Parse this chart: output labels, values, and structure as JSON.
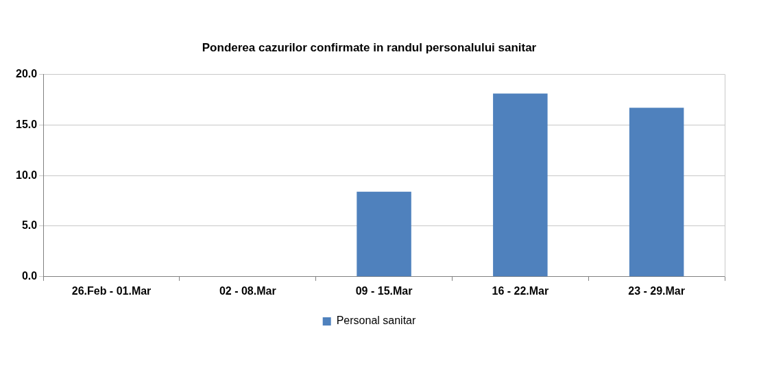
{
  "chart_data": {
    "type": "bar",
    "title": "Ponderea cazurilor confirmate in randul personalului sanitar",
    "categories": [
      "26.Feb - 01.Mar",
      "02 - 08.Mar",
      "09 - 15.Mar",
      "16 - 22.Mar",
      "23 - 29.Mar"
    ],
    "series": [
      {
        "name": "Personal sanitar",
        "color": "#4f81bd",
        "values": [
          0,
          0,
          8.4,
          18.1,
          16.7
        ]
      }
    ],
    "ylim": [
      0,
      20
    ],
    "yticks": [
      {
        "value": 0,
        "label": "0.0"
      },
      {
        "value": 5,
        "label": "5.0"
      },
      {
        "value": 10,
        "label": "10.0"
      },
      {
        "value": 15,
        "label": "15.0"
      },
      {
        "value": 20,
        "label": "20.0"
      }
    ],
    "grid": "y",
    "legend": "bottom"
  }
}
